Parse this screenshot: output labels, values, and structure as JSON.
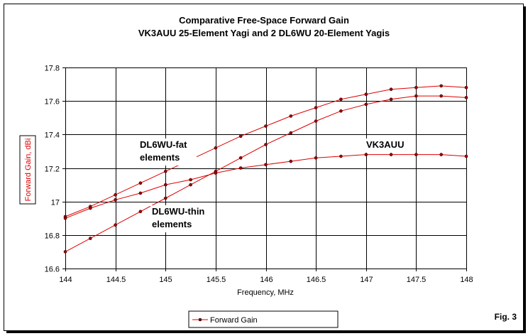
{
  "chart_data": {
    "type": "line",
    "title": "Comparative Free-Space Forward Gain",
    "subtitle": "VK3AUU 25-Element Yagi and 2 DL6WU 20-Element Yagis",
    "xlabel": "Frequency, MHz",
    "ylabel": "Forward Gain,  dBi",
    "xlim": [
      144,
      148
    ],
    "ylim": [
      16.6,
      17.8
    ],
    "x_ticks": [
      "144",
      "144.5",
      "145",
      "145.5",
      "146",
      "146.5",
      "147",
      "147.5",
      "148"
    ],
    "y_ticks": [
      "17.8",
      "17.6",
      "17.4",
      "17.2",
      "17",
      "16.8",
      "16.6"
    ],
    "grid": true,
    "legend": {
      "position": "bottom",
      "entries": [
        "Forward Gain"
      ]
    },
    "color": "#e00000",
    "x": [
      144,
      144.25,
      144.5,
      144.75,
      145,
      145.25,
      145.5,
      145.75,
      146,
      146.25,
      146.5,
      146.75,
      147,
      147.25,
      147.5,
      147.75,
      148
    ],
    "series": [
      {
        "name": "DL6WU-fat elements",
        "values": [
          16.91,
          16.97,
          17.04,
          17.11,
          17.18,
          17.25,
          17.32,
          17.39,
          17.45,
          17.51,
          17.56,
          17.61,
          17.64,
          17.67,
          17.68,
          17.69,
          17.68
        ]
      },
      {
        "name": "DL6WU-thin elements",
        "values": [
          16.7,
          16.78,
          16.86,
          16.94,
          17.02,
          17.1,
          17.18,
          17.26,
          17.34,
          17.41,
          17.48,
          17.54,
          17.58,
          17.61,
          17.63,
          17.63,
          17.62
        ]
      },
      {
        "name": "VK3AUU",
        "values": [
          16.9,
          16.96,
          17.01,
          17.05,
          17.1,
          17.13,
          17.17,
          17.2,
          17.22,
          17.24,
          17.26,
          17.27,
          17.28,
          17.28,
          17.28,
          17.28,
          17.27
        ]
      }
    ],
    "annotations": [
      {
        "lines": [
          "DL6WU-fat",
          "elements"
        ],
        "near": "DL6WU-fat elements"
      },
      {
        "lines": [
          "DL6WU-thin",
          "elements"
        ],
        "near": "DL6WU-thin elements"
      },
      {
        "lines": [
          "VK3AUU"
        ],
        "near": "VK3AUU"
      }
    ],
    "figure_label": "Fig. 3"
  }
}
